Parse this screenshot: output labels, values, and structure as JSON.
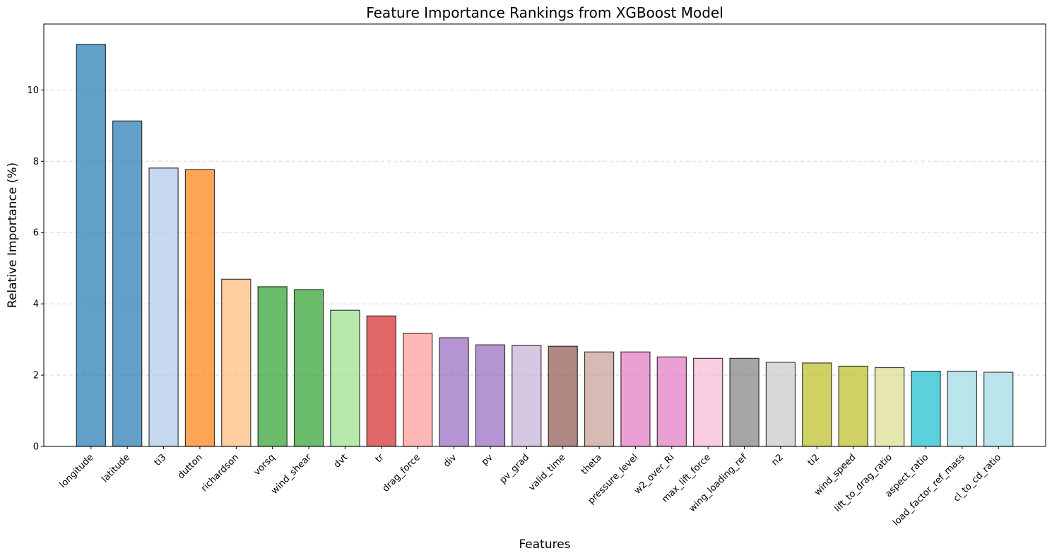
{
  "chart_data": {
    "type": "bar",
    "title": "Feature Importance Rankings from XGBoost Model",
    "xlabel": "Features",
    "ylabel": "Relative Importance (%)",
    "ylim": [
      0,
      11.85
    ],
    "yticks": [
      0,
      2,
      4,
      6,
      8,
      10
    ],
    "grid": "y-dashed",
    "categories": [
      "longitude",
      "latitude",
      "ti3",
      "dutton",
      "richardson",
      "vorsq",
      "wind_shear",
      "dvt",
      "tr",
      "drag_force",
      "div",
      "pv",
      "pv_grad",
      "valid_time",
      "theta",
      "pressure_level",
      "w2_over_Ri",
      "max_lift_force",
      "wing_loading_ref",
      "n2",
      "ti2",
      "wind_speed",
      "lift_to_drag_ratio",
      "aspect_ratio",
      "load_factor_ref_mass",
      "cl_to_cd_ratio"
    ],
    "values": [
      11.28,
      9.13,
      7.81,
      7.77,
      4.69,
      4.48,
      4.4,
      3.82,
      3.66,
      3.17,
      3.05,
      2.85,
      2.83,
      2.81,
      2.65,
      2.65,
      2.51,
      2.47,
      2.47,
      2.36,
      2.34,
      2.25,
      2.21,
      2.11,
      2.11,
      2.08
    ],
    "colors": [
      "#1f77b4",
      "#1f77b4",
      "#aec7e8",
      "#ff7f0e",
      "#ffbb78",
      "#2ca02c",
      "#2ca02c",
      "#98df8a",
      "#d62728",
      "#ff9896",
      "#9467bd",
      "#9467bd",
      "#c5b0d5",
      "#8c564b",
      "#c49c94",
      "#e377c2",
      "#e377c2",
      "#f7b6d2",
      "#7f7f7f",
      "#c7c7c7",
      "#bcbd22",
      "#bcbd22",
      "#dbdb8d",
      "#17becf",
      "#9edae5",
      "#9edae5"
    ]
  }
}
